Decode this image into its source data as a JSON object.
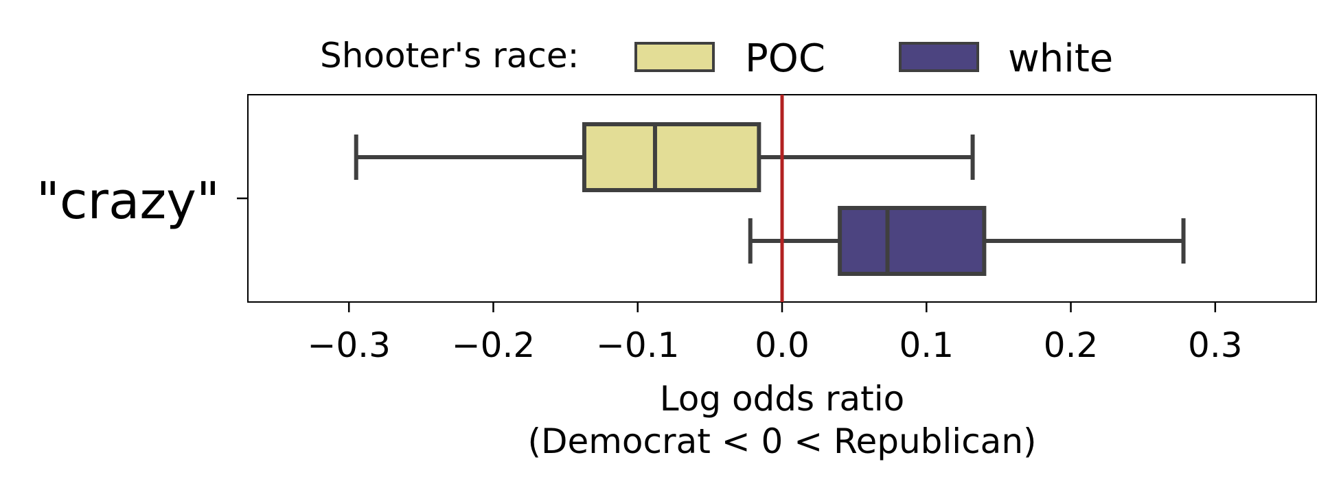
{
  "chart_data": {
    "type": "boxplot",
    "orientation": "horizontal",
    "category": "\"crazy\"",
    "legend": {
      "title": "Shooter's race:",
      "placement": "top",
      "entries": [
        {
          "name": "POC",
          "color": "#e3dd96"
        },
        {
          "name": "white",
          "color": "#4c4480"
        }
      ]
    },
    "series": [
      {
        "name": "POC",
        "whisker_low": -0.295,
        "q1": -0.137,
        "median": -0.088,
        "q3": -0.016,
        "whisker_high": 0.132
      },
      {
        "name": "white",
        "whisker_low": -0.022,
        "q1": 0.04,
        "median": 0.073,
        "q3": 0.14,
        "whisker_high": 0.278
      }
    ],
    "reference_line": {
      "x": 0.0,
      "color": "#b22222"
    },
    "x_ticks": [
      -0.3,
      -0.2,
      -0.1,
      0.0,
      0.1,
      0.2,
      0.3
    ],
    "x_tick_labels": [
      "−0.3",
      "−0.2",
      "−0.1",
      "0.0",
      "0.1",
      "0.2",
      "0.3"
    ],
    "xlim": [
      -0.37,
      0.37
    ],
    "xlabel": "Log odds ratio",
    "xlabel_line2": "(Democrat < 0 < Republican)",
    "grid": false,
    "edge_color": "#3f3f3f"
  }
}
